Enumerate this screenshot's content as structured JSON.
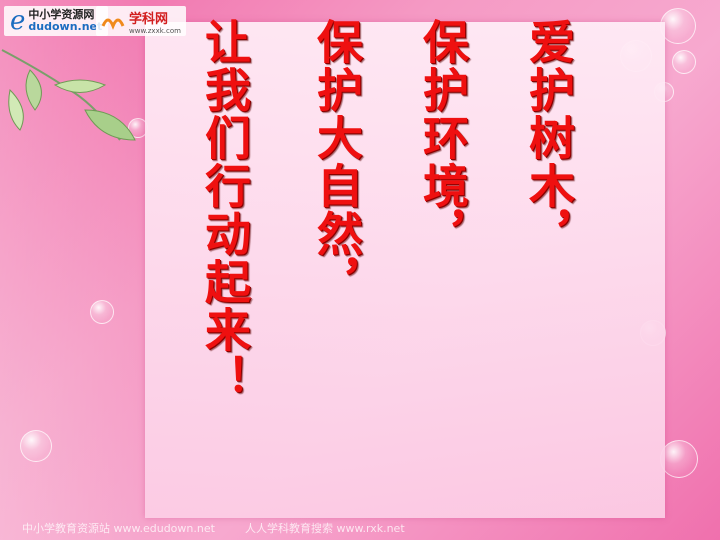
{
  "logos": {
    "left": {
      "line1": "中小学资源网",
      "line2": "dudown.net"
    },
    "right": {
      "name": "学科网",
      "url": "www.zxxk.com"
    }
  },
  "poem": {
    "lines": [
      "爱护树木，",
      "保护环境，",
      "保护大自然，",
      "让我们行动起来！"
    ]
  },
  "footer": {
    "left": "中小学教育资源站 www.edudown.net",
    "right": "人人学科教育搜索 www.rxk.net"
  },
  "colors": {
    "text": "#ef1010",
    "background": "#f59ac4"
  }
}
